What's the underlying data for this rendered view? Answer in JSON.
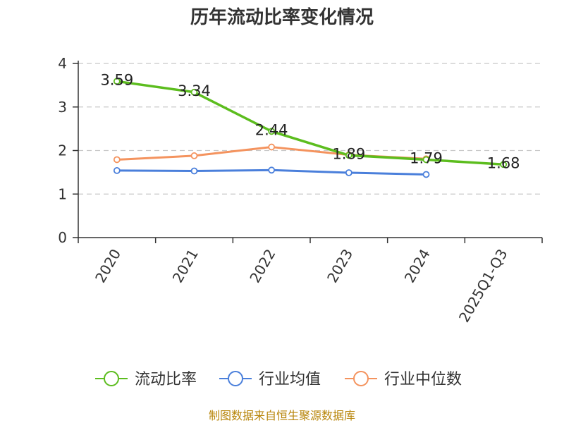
{
  "chart_data": {
    "type": "line",
    "title": "历年流动比率变化情况",
    "categories": [
      "2020",
      "2021",
      "2022",
      "2023",
      "2024",
      "2025Q1-Q3"
    ],
    "ylim": [
      0,
      4
    ],
    "yticks": [
      "0",
      "1",
      "2",
      "3",
      "4"
    ],
    "grid": true,
    "legend_position": "bottom",
    "series": [
      {
        "name": "流动比率",
        "color": "#5cbd1e",
        "values": [
          3.59,
          3.34,
          2.44,
          1.89,
          1.79,
          1.68
        ],
        "labels": [
          "3.59",
          "3.34",
          "2.44",
          "1.89",
          "1.79",
          "1.68"
        ]
      },
      {
        "name": "行业均值",
        "color": "#4a7fdb",
        "values": [
          1.54,
          1.53,
          1.55,
          1.49,
          1.45,
          null
        ]
      },
      {
        "name": "行业中位数",
        "color": "#f4935e",
        "values": [
          1.79,
          1.88,
          2.08,
          1.9,
          1.81,
          null
        ]
      }
    ]
  },
  "footer": "制图数据来自恒生聚源数据库"
}
